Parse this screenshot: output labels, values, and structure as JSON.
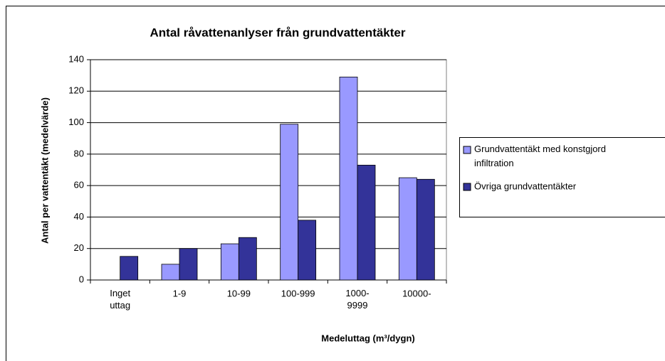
{
  "chart_data": {
    "type": "bar",
    "title": "Antal råvattenanlyser från grundvattentäkter",
    "xlabel": "Medeluttag (m³/dygn)",
    "ylabel": "Antal per vattentäkt (medelvärde)",
    "categories": [
      "Inget uttag",
      "1-9",
      "10-99",
      "100-999",
      "1000-9999",
      "10000-"
    ],
    "series": [
      {
        "name": "Grundvattentäkt med konstgjord infiltration",
        "color": "#9999ff",
        "values": [
          null,
          10,
          23,
          99,
          129,
          65
        ]
      },
      {
        "name": "Övriga grundvattentäkter",
        "color": "#333399",
        "values": [
          15,
          20,
          27,
          38,
          73,
          64
        ]
      }
    ],
    "ylim": [
      0,
      140
    ],
    "yticks": [
      0,
      20,
      40,
      60,
      80,
      100,
      120,
      140
    ],
    "grid": true,
    "legend": "right"
  }
}
